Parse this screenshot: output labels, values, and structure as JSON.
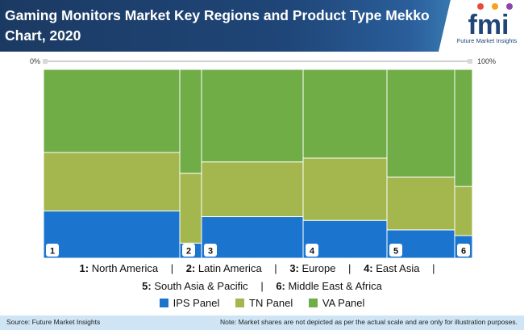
{
  "header": {
    "title": "Gaming Monitors Market Key Regions and Product Type Mekko Chart, 2020",
    "logo_text": "fmi",
    "logo_subtitle": "Future Market Insights"
  },
  "chart_data": {
    "type": "mekko",
    "x_axis": {
      "min_label": "0%",
      "max_label": "100%"
    },
    "categories": [
      "1",
      "2",
      "3",
      "4",
      "5",
      "6"
    ],
    "widths": [
      33.8,
      5.4,
      25.2,
      20.8,
      16.8,
      4.4
    ],
    "series": [
      {
        "name": "IPS Panel",
        "color": "#1b75cf",
        "values": [
          25,
          8,
          22,
          20,
          15,
          12
        ]
      },
      {
        "name": "TN Panel",
        "color": "#a4b64e",
        "values": [
          31,
          37,
          29,
          33,
          28,
          26
        ]
      },
      {
        "name": "VA Panel",
        "color": "#70ad47",
        "values": [
          44,
          55,
          49,
          47,
          57,
          62
        ]
      }
    ]
  },
  "regions": {
    "row1": [
      {
        "num": "1:",
        "name": "North America"
      },
      {
        "num": "2:",
        "name": "Latin America"
      },
      {
        "num": "3:",
        "name": "Europe"
      },
      {
        "num": "4:",
        "name": "East Asia"
      }
    ],
    "row2": [
      {
        "num": "5:",
        "name": "South Asia & Pacific"
      },
      {
        "num": "6:",
        "name": "Middle East & Africa"
      }
    ],
    "separator": "|"
  },
  "legend": [
    {
      "label": "IPS Panel",
      "color": "#1b75cf"
    },
    {
      "label": "TN Panel",
      "color": "#a4b64e"
    },
    {
      "label": "VA Panel",
      "color": "#70ad47"
    }
  ],
  "footer": {
    "source": "Source: Future Market Insights",
    "note": "Note: Market shares are not depicted as per the actual scale and are only for illustration purposes."
  }
}
